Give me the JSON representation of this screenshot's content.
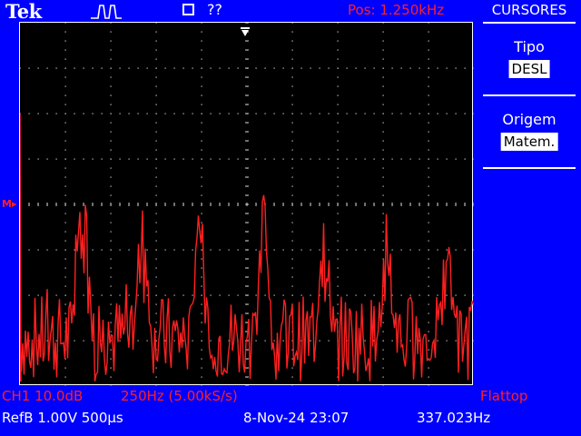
{
  "header": {
    "brand": "Tek",
    "trigger_icon": "trigger-pulse-icon",
    "acq_icon": "acquire-square-icon",
    "acq_status": "??",
    "position": "Pos: 1.250kHz"
  },
  "side_menu": {
    "title": "CURSORES",
    "options": [
      {
        "label": "Tipo",
        "value": "DESL"
      },
      {
        "label": "Origem",
        "value": "Matem."
      }
    ]
  },
  "status": {
    "ch1": "CH1 10.0dB",
    "span": "250Hz (5.00kS/s)",
    "window": "Flattop",
    "ref": "RefB 1.00V 500µs",
    "datetime": "8-Nov-24 23:07",
    "freq": "337.023Hz"
  },
  "colors": {
    "trace": "#ff2020",
    "background": "#0000ff",
    "screen": "#000000"
  }
}
